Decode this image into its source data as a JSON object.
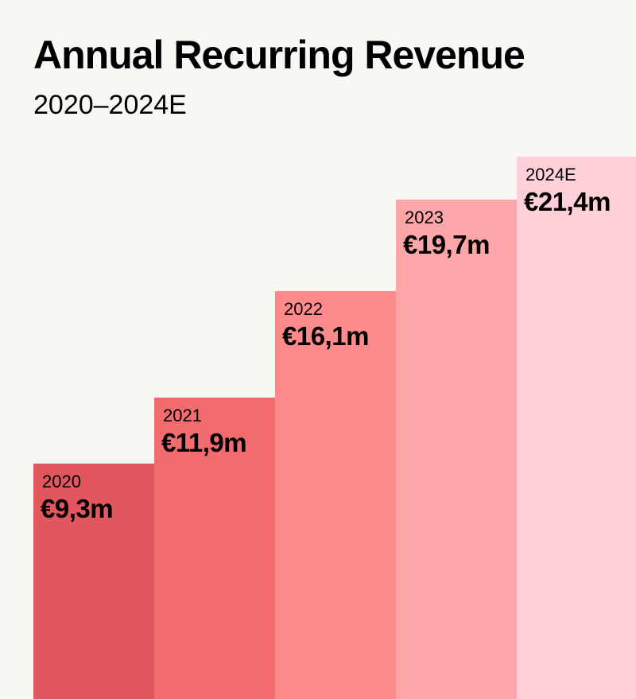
{
  "chart_data": {
    "type": "bar",
    "title": "Annual Recurring Revenue",
    "subtitle": "2020–2024E",
    "categories": [
      "2020",
      "2021",
      "2022",
      "2023",
      "2024E"
    ],
    "values": [
      9.3,
      11.9,
      16.1,
      19.7,
      21.4
    ],
    "value_labels": [
      "€9,3m",
      "€11,9m",
      "€16,1m",
      "€19,7m",
      "€21,4m"
    ],
    "unit": "€m",
    "xlabel": "",
    "ylabel": "",
    "ylim": [
      0,
      25
    ],
    "grid": false,
    "legend": "none",
    "colors": [
      "#e2565d",
      "#f26b6e",
      "#fe8a8c",
      "#fda6aa",
      "#ffd0d7"
    ]
  }
}
